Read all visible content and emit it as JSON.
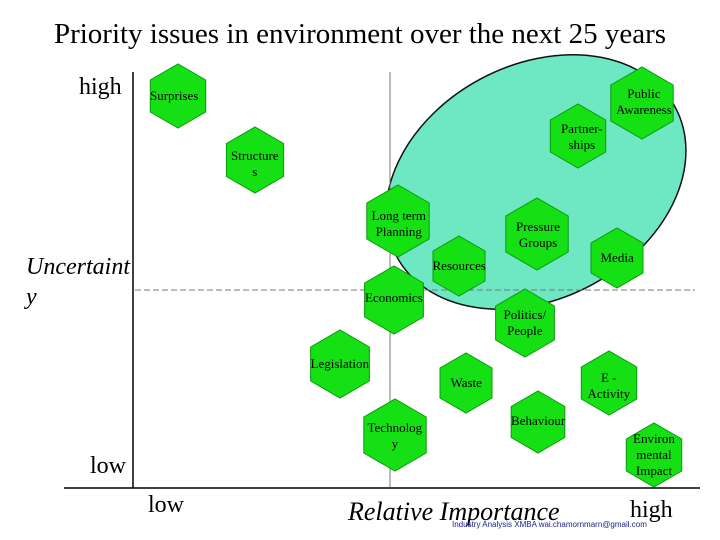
{
  "title": "Priority issues in environment over the next 25 years",
  "y_axis": {
    "label": "Uncertaint\ny",
    "high": "high",
    "low": "low"
  },
  "x_axis": {
    "label": "Relative Importance",
    "low": "low",
    "high": "high"
  },
  "footer": "Industry Analysis XMBA wai.chamornmarn@gmail.com",
  "colors": {
    "hexagon": "#14e014",
    "hexagon_stroke": "#0b9a0b",
    "ellipse": "#6ee8c3",
    "ellipse_stroke": "#111111",
    "divider": "#777777",
    "axis": "#000000"
  },
  "nodes": [
    {
      "id": "surprises",
      "label": "Surprises"
    },
    {
      "id": "public-awareness",
      "label": "Public\nAwareness"
    },
    {
      "id": "partnerships",
      "label": "Partner-\nships"
    },
    {
      "id": "structures",
      "label": "Structure\ns"
    },
    {
      "id": "long-term-planning",
      "label": "Long term\nPlanning"
    },
    {
      "id": "pressure-groups",
      "label": "Pressure\nGroups"
    },
    {
      "id": "media",
      "label": "Media"
    },
    {
      "id": "resources",
      "label": "Resources"
    },
    {
      "id": "economics",
      "label": "Economics"
    },
    {
      "id": "politics-people",
      "label": "Politics/\nPeople"
    },
    {
      "id": "legislation",
      "label": "Legislation"
    },
    {
      "id": "waste",
      "label": "Waste"
    },
    {
      "id": "e-activity",
      "label": "E -\nActivity"
    },
    {
      "id": "technology",
      "label": "Technolog\ny"
    },
    {
      "id": "behaviour",
      "label": "Behaviour"
    },
    {
      "id": "environmental-impact",
      "label": "Environ\nmental\nImpact"
    }
  ]
}
